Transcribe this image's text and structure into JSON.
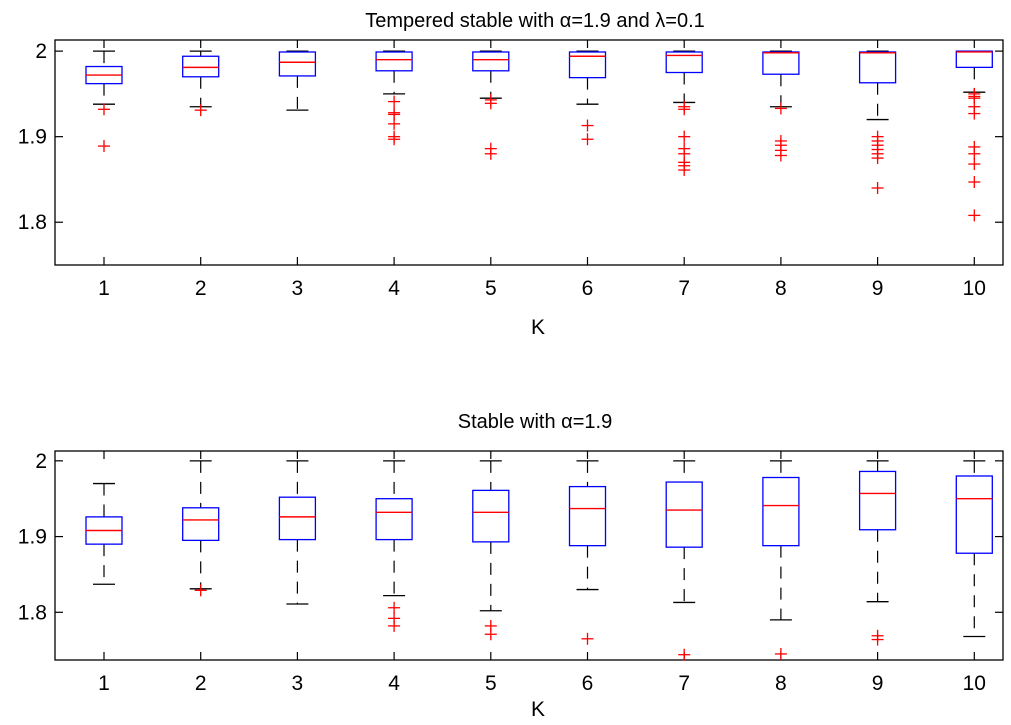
{
  "chart_data": [
    {
      "type": "box",
      "title": "Tempered stable with α=1.9 and λ=0.1",
      "xlabel": "K",
      "ylabel": "",
      "ylim": [
        1.75,
        2.013
      ],
      "yticks": [
        "1.8",
        "1.9",
        "2"
      ],
      "categories": [
        "1",
        "2",
        "3",
        "4",
        "5",
        "6",
        "7",
        "8",
        "9",
        "10"
      ],
      "colors": {
        "box": "#0000ff",
        "median": "#ff0000",
        "whisker": "#000000",
        "outlier": "#ff0000"
      },
      "boxes": [
        {
          "whislo": 1.938,
          "q1": 1.962,
          "med": 1.972,
          "q3": 1.982,
          "whishi": 2.0,
          "fliers": [
            1.932,
            1.889
          ]
        },
        {
          "whislo": 1.935,
          "q1": 1.97,
          "med": 1.981,
          "q3": 1.994,
          "whishi": 2.0,
          "fliers": [
            1.931
          ]
        },
        {
          "whislo": 1.931,
          "q1": 1.971,
          "med": 1.987,
          "q3": 1.999,
          "whishi": 2.0,
          "fliers": []
        },
        {
          "whislo": 1.95,
          "q1": 1.977,
          "med": 1.99,
          "q3": 1.999,
          "whishi": 2.0,
          "fliers": [
            1.941,
            1.928,
            1.926,
            1.915,
            1.9,
            1.897
          ]
        },
        {
          "whislo": 1.945,
          "q1": 1.977,
          "med": 1.99,
          "q3": 1.999,
          "whishi": 2.0,
          "fliers": [
            1.943,
            1.939,
            1.886,
            1.88
          ]
        },
        {
          "whislo": 1.938,
          "q1": 1.969,
          "med": 1.994,
          "q3": 1.999,
          "whishi": 2.0,
          "fliers": [
            1.913,
            1.897
          ]
        },
        {
          "whislo": 1.94,
          "q1": 1.975,
          "med": 1.995,
          "q3": 1.999,
          "whishi": 2.0,
          "fliers": [
            1.935,
            1.932,
            1.9,
            1.886,
            1.88,
            1.87,
            1.866,
            1.861
          ]
        },
        {
          "whislo": 1.935,
          "q1": 1.973,
          "med": 1.998,
          "q3": 1.999,
          "whishi": 2.0,
          "fliers": [
            1.933,
            1.895,
            1.89,
            1.884,
            1.878
          ]
        },
        {
          "whislo": 1.92,
          "q1": 1.963,
          "med": 1.998,
          "q3": 1.999,
          "whishi": 2.0,
          "fliers": [
            1.9,
            1.895,
            1.89,
            1.885,
            1.88,
            1.875,
            1.84
          ]
        },
        {
          "whislo": 1.952,
          "q1": 1.981,
          "med": 1.999,
          "q3": 2.0,
          "whishi": 2.0,
          "fliers": [
            1.95,
            1.947,
            1.945,
            1.935,
            1.927,
            1.888,
            1.88,
            1.868,
            1.847,
            1.808
          ]
        }
      ]
    },
    {
      "type": "box",
      "title": "Stable with α=1.9",
      "xlabel": "K",
      "ylabel": "",
      "ylim": [
        1.737,
        2.013
      ],
      "yticks": [
        "1.8",
        "1.9",
        "2"
      ],
      "categories": [
        "1",
        "2",
        "3",
        "4",
        "5",
        "6",
        "7",
        "8",
        "9",
        "10"
      ],
      "colors": {
        "box": "#0000ff",
        "median": "#ff0000",
        "whisker": "#000000",
        "outlier": "#ff0000"
      },
      "boxes": [
        {
          "whislo": 1.837,
          "q1": 1.89,
          "med": 1.908,
          "q3": 1.926,
          "whishi": 1.97,
          "fliers": []
        },
        {
          "whislo": 1.831,
          "q1": 1.895,
          "med": 1.922,
          "q3": 1.938,
          "whishi": 2.0,
          "fliers": [
            1.829
          ]
        },
        {
          "whislo": 1.811,
          "q1": 1.896,
          "med": 1.926,
          "q3": 1.952,
          "whishi": 2.0,
          "fliers": []
        },
        {
          "whislo": 1.822,
          "q1": 1.896,
          "med": 1.932,
          "q3": 1.95,
          "whishi": 2.0,
          "fliers": [
            1.806,
            1.792,
            1.782
          ]
        },
        {
          "whislo": 1.802,
          "q1": 1.893,
          "med": 1.932,
          "q3": 1.961,
          "whishi": 2.0,
          "fliers": [
            1.782,
            1.771
          ]
        },
        {
          "whislo": 1.83,
          "q1": 1.888,
          "med": 1.937,
          "q3": 1.966,
          "whishi": 2.0,
          "fliers": [
            1.765
          ]
        },
        {
          "whislo": 1.813,
          "q1": 1.886,
          "med": 1.935,
          "q3": 1.972,
          "whishi": 2.0,
          "fliers": [
            1.744
          ]
        },
        {
          "whislo": 1.79,
          "q1": 1.888,
          "med": 1.941,
          "q3": 1.978,
          "whishi": 2.0,
          "fliers": [
            1.745
          ]
        },
        {
          "whislo": 1.814,
          "q1": 1.909,
          "med": 1.957,
          "q3": 1.986,
          "whishi": 2.0,
          "fliers": [
            1.769,
            1.764
          ]
        },
        {
          "whislo": 1.768,
          "q1": 1.878,
          "med": 1.95,
          "q3": 1.98,
          "whishi": 2.0,
          "fliers": []
        }
      ]
    }
  ]
}
